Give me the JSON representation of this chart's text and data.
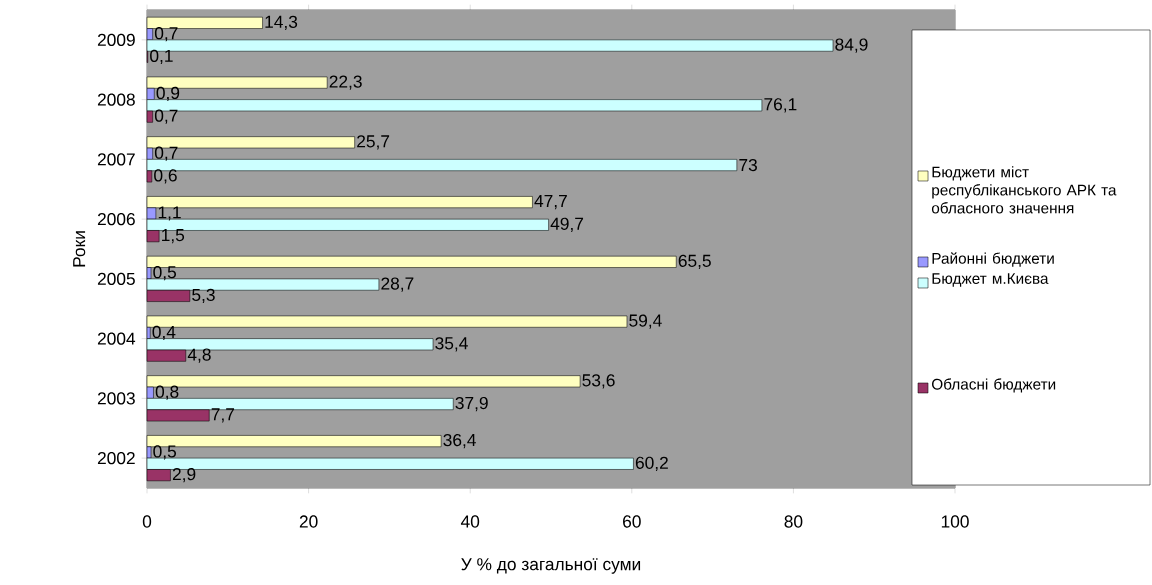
{
  "chart_data": {
    "type": "bar",
    "orientation": "horizontal",
    "xlabel": "У % до загальної суми",
    "ylabel": "Роки",
    "categories": [
      "2009",
      "2008",
      "2007",
      "2006",
      "2005",
      "2004",
      "2003",
      "2002"
    ],
    "series": [
      {
        "name": "Бюджети міст республіканського АРК та обласного значення",
        "color": "#ffffc0",
        "values": [
          14.3,
          22.3,
          25.7,
          47.7,
          65.5,
          59.4,
          53.6,
          36.4
        ],
        "value_labels": [
          "14,3",
          "22,3",
          "25,7",
          "47,7",
          "65,5",
          "59,4",
          "53,6",
          "36,4"
        ]
      },
      {
        "name": "Районні бюджети",
        "color": "#9999ff",
        "values": [
          0.7,
          0.9,
          0.7,
          1.1,
          0.5,
          0.4,
          0.8,
          0.5
        ],
        "value_labels": [
          "0,7",
          "0,9",
          "0,7",
          "1,1",
          "0,5",
          "0,4",
          "0,8",
          "0,5"
        ]
      },
      {
        "name": "Бюджет м.Києва",
        "color": "#ccffff",
        "values": [
          84.9,
          76.1,
          73,
          49.7,
          28.7,
          35.4,
          37.9,
          60.2
        ],
        "value_labels": [
          "84,9",
          "76,1",
          "73",
          "49,7",
          "28,7",
          "35,4",
          "37,9",
          "60,2"
        ]
      },
      {
        "name": "Обласні бюджети",
        "color": "#993366",
        "values": [
          0.1,
          0.7,
          0.6,
          1.5,
          5.3,
          4.8,
          7.7,
          2.9
        ],
        "value_labels": [
          "0,1",
          "0,7",
          "0,6",
          "1,5",
          "5,3",
          "4,8",
          "7,7",
          "2,9"
        ]
      }
    ],
    "xlim": [
      0,
      100
    ],
    "xticks": [
      0,
      20,
      40,
      60,
      80,
      100
    ],
    "grid": false,
    "legend": "right"
  }
}
